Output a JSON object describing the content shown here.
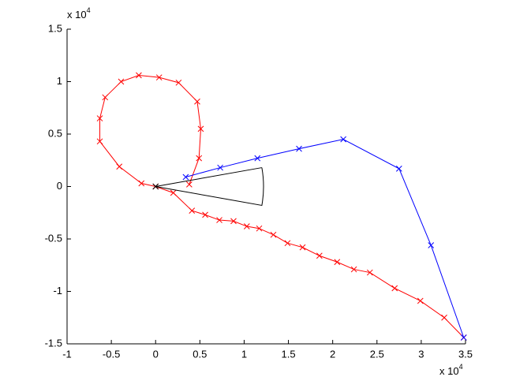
{
  "chart_data": {
    "type": "line",
    "x_scale_base": "x 10",
    "x_scale_exponent": "4",
    "y_scale_base": "x 10",
    "y_scale_exponent": "4",
    "xlim": [
      -1,
      3.5
    ],
    "ylim": [
      -1.5,
      1.5
    ],
    "xticks": [
      -1,
      -0.5,
      0,
      0.5,
      1,
      1.5,
      2,
      2.5,
      3,
      3.5
    ],
    "yticks": [
      -1.5,
      -1,
      -0.5,
      0,
      0.5,
      1,
      1.5
    ],
    "grid": false,
    "series": [
      {
        "color": "#ff0000",
        "marker": "x",
        "x": [
          0.38,
          0.49,
          0.51,
          0.47,
          0.26,
          0.04,
          -0.19,
          -0.39,
          -0.57,
          -0.63,
          -0.63,
          -0.41,
          -0.16,
          0,
          0.2,
          0.41,
          0.56,
          0.72,
          0.88,
          1.03,
          1.17,
          1.33,
          1.49,
          1.66,
          1.85,
          2.05,
          2.24,
          2.42,
          2.7,
          2.99,
          3.26,
          3.48
        ],
        "values": [
          0.02,
          0.27,
          0.55,
          0.81,
          0.99,
          1.04,
          1.06,
          1.0,
          0.85,
          0.65,
          0.43,
          0.19,
          0.03,
          0,
          -0.06,
          -0.23,
          -0.27,
          -0.32,
          -0.33,
          -0.38,
          -0.4,
          -0.46,
          -0.54,
          -0.58,
          -0.66,
          -0.72,
          -0.79,
          -0.82,
          -0.97,
          -1.09,
          -1.25,
          -1.44
        ]
      },
      {
        "color": "#0000ff",
        "marker": "x",
        "x": [
          0.34,
          0.73,
          1.15,
          1.62,
          2.12,
          2.75,
          3.11,
          3.48
        ],
        "values": [
          0.09,
          0.18,
          0.27,
          0.36,
          0.45,
          0.17,
          -0.56,
          -1.44
        ]
      },
      {
        "color": "#000000",
        "marker": "none",
        "closed_arc": true,
        "x": [
          1.2,
          0,
          1.2
        ],
        "values": [
          0.18,
          0,
          -0.18
        ]
      },
      {
        "color": "#000000",
        "marker": "x",
        "line": false,
        "x": [
          0
        ],
        "values": [
          0
        ]
      }
    ]
  }
}
